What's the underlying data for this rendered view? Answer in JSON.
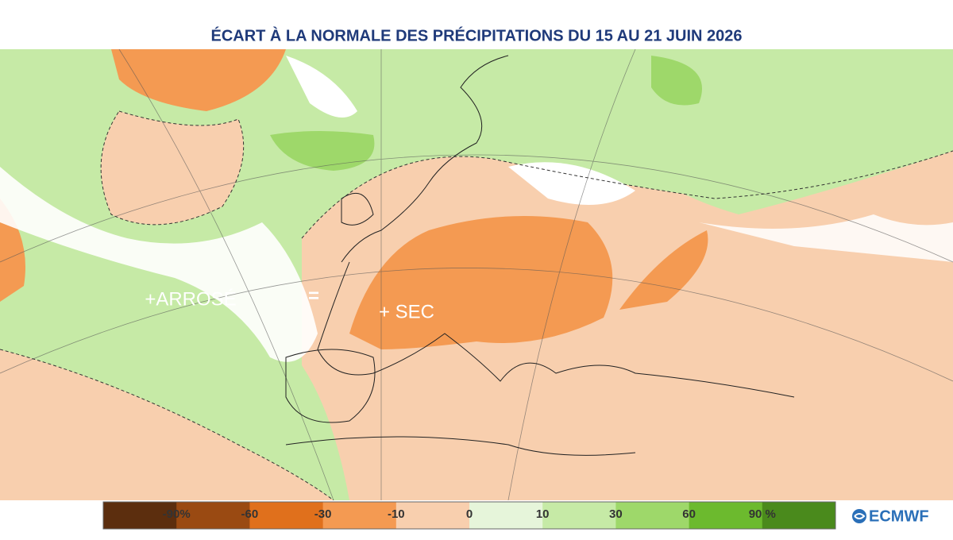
{
  "title": "ÉCART À LA NORMALE DES PRÉCIPITATIONS DU 15  AU 21 JUIN 2026",
  "annotations": [
    "+ARROSÉ",
    "=",
    "+ SEC"
  ],
  "legend": {
    "labels": [
      "-90%",
      "-60",
      "-30",
      "-10",
      "0",
      "10",
      "30",
      "60",
      "90 %"
    ],
    "colors": [
      "#5c2e0e",
      "#9a4a12",
      "#e0701c",
      "#f49a52",
      "#f8cfae",
      "#e6f5da",
      "#c6eaa6",
      "#9ed86a",
      "#6cba2e",
      "#4a8a1c"
    ]
  },
  "logo": "ECMWF"
}
